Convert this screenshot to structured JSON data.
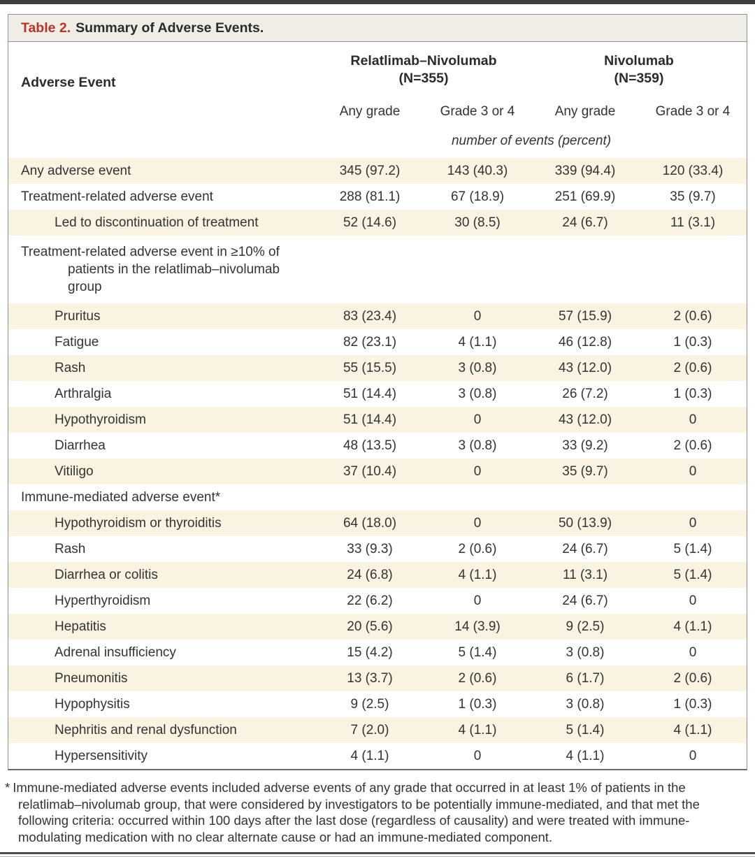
{
  "title": {
    "label": "Table 2.",
    "text": "Summary of Adverse Events."
  },
  "header": {
    "row_label": "Adverse Event",
    "groups": [
      {
        "name": "Relatlimab–Nivolumab",
        "n": "(N=355)"
      },
      {
        "name": "Nivolumab",
        "n": "(N=359)"
      }
    ],
    "subheaders": [
      "Any grade",
      "Grade 3 or 4",
      "Any grade",
      "Grade 3 or 4"
    ],
    "units_note": "number of events (percent)"
  },
  "table": {
    "rows": [
      {
        "label": "Any adverse event",
        "indent": 0,
        "values": [
          "345 (97.2)",
          "143 (40.3)",
          "339 (94.4)",
          "120 (33.4)"
        ]
      },
      {
        "label": "Treatment-related adverse event",
        "indent": 0,
        "values": [
          "288 (81.1)",
          "67 (18.9)",
          "251 (69.9)",
          "35 (9.7)"
        ]
      },
      {
        "label": "Led to discontinuation of treatment",
        "indent": 1,
        "values": [
          "52 (14.6)",
          "30 (8.5)",
          "24 (6.7)",
          "11 (3.1)"
        ]
      },
      {
        "label": "Treatment-related adverse event in ≥10% of patients in the relatlimab–nivolumab group",
        "indent": 0,
        "hanging": true,
        "values": []
      },
      {
        "label": "Pruritus",
        "indent": 1,
        "values": [
          "83 (23.4)",
          "0",
          "57 (15.9)",
          "2 (0.6)"
        ]
      },
      {
        "label": "Fatigue",
        "indent": 1,
        "values": [
          "82 (23.1)",
          "4 (1.1)",
          "46 (12.8)",
          "1 (0.3)"
        ]
      },
      {
        "label": "Rash",
        "indent": 1,
        "values": [
          "55 (15.5)",
          "3 (0.8)",
          "43 (12.0)",
          "2 (0.6)"
        ]
      },
      {
        "label": "Arthralgia",
        "indent": 1,
        "values": [
          "51 (14.4)",
          "3 (0.8)",
          "26 (7.2)",
          "1 (0.3)"
        ]
      },
      {
        "label": "Hypothyroidism",
        "indent": 1,
        "values": [
          "51 (14.4)",
          "0",
          "43 (12.0)",
          "0"
        ]
      },
      {
        "label": "Diarrhea",
        "indent": 1,
        "values": [
          "48 (13.5)",
          "3 (0.8)",
          "33 (9.2)",
          "2 (0.6)"
        ]
      },
      {
        "label": "Vitiligo",
        "indent": 1,
        "values": [
          "37 (10.4)",
          "0",
          "35 (9.7)",
          "0"
        ]
      },
      {
        "label": "Immune-mediated adverse event*",
        "indent": 0,
        "values": []
      },
      {
        "label": "Hypothyroidism or thyroiditis",
        "indent": 1,
        "values": [
          "64 (18.0)",
          "0",
          "50 (13.9)",
          "0"
        ]
      },
      {
        "label": "Rash",
        "indent": 1,
        "values": [
          "33 (9.3)",
          "2 (0.6)",
          "24 (6.7)",
          "5 (1.4)"
        ]
      },
      {
        "label": "Diarrhea or colitis",
        "indent": 1,
        "values": [
          "24 (6.8)",
          "4 (1.1)",
          "11 (3.1)",
          "5 (1.4)"
        ]
      },
      {
        "label": "Hyperthyroidism",
        "indent": 1,
        "values": [
          "22 (6.2)",
          "0",
          "24 (6.7)",
          "0"
        ]
      },
      {
        "label": "Hepatitis",
        "indent": 1,
        "values": [
          "20 (5.6)",
          "14 (3.9)",
          "9 (2.5)",
          "4 (1.1)"
        ]
      },
      {
        "label": "Adrenal insufficiency",
        "indent": 1,
        "values": [
          "15 (4.2)",
          "5 (1.4)",
          "3 (0.8)",
          "0"
        ]
      },
      {
        "label": "Pneumonitis",
        "indent": 1,
        "values": [
          "13 (3.7)",
          "2 (0.6)",
          "6 (1.7)",
          "2 (0.6)"
        ]
      },
      {
        "label": "Hypophysitis",
        "indent": 1,
        "values": [
          "9 (2.5)",
          "1 (0.3)",
          "3 (0.8)",
          "1 (0.3)"
        ]
      },
      {
        "label": "Nephritis and renal dysfunction",
        "indent": 1,
        "values": [
          "7 (2.0)",
          "4 (1.1)",
          "5 (1.4)",
          "4 (1.1)"
        ]
      },
      {
        "label": "Hypersensitivity",
        "indent": 1,
        "values": [
          "4 (1.1)",
          "0",
          "4 (1.1)",
          "0"
        ]
      }
    ]
  },
  "footnote": {
    "marker": "*",
    "text": "Immune-mediated adverse events included adverse events of any grade that occurred in at least 1% of patients in the relatlimab–nivolumab group, that were considered by investigators to be potentially immune-mediated, and that met the following criteria: occurred within 100 days after the last dose (regardless of causality) and were treated with immune-modulating medication with no clear alternate cause or had an immune-mediated component."
  },
  "colors": {
    "accent_red": "#b5352c",
    "row_shade": "#faf3e2",
    "title_band": "#f0ede5",
    "border_gray": "#8f8f8f",
    "text": "#333333"
  }
}
